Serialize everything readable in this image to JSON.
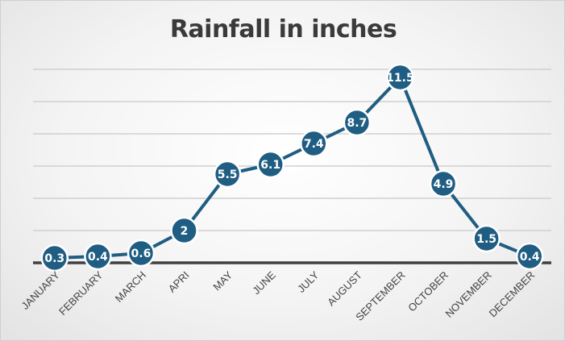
{
  "chart_data": {
    "type": "line",
    "title": "Rainfall in inches",
    "categories": [
      "JANUARY",
      "FEBRUARY",
      "MARCH",
      "APRI",
      "MAY",
      "JUNE",
      "JULY",
      "AUGUST",
      "SEPTEMBER",
      "OCTOBER",
      "NOVEMBER",
      "DECEMBER"
    ],
    "series": [
      {
        "values": [
          0.3,
          0.4,
          0.6,
          2,
          5.5,
          6.1,
          7.4,
          8.7,
          11.5,
          4.9,
          1.5,
          0.4
        ],
        "labels": [
          "0.3",
          "0.4",
          "0.6",
          "2",
          "5.5",
          "6.1",
          "7.4",
          "8.7",
          "11.5",
          "4.9",
          "1.5",
          "0.4"
        ]
      }
    ],
    "ylim": [
      0,
      12
    ],
    "grid": true,
    "legend": "none",
    "colors": {
      "series": "#1f5d82",
      "marker_outline": "#ffffff",
      "grid": "#d0d0d0",
      "baseline": "#404040"
    }
  }
}
